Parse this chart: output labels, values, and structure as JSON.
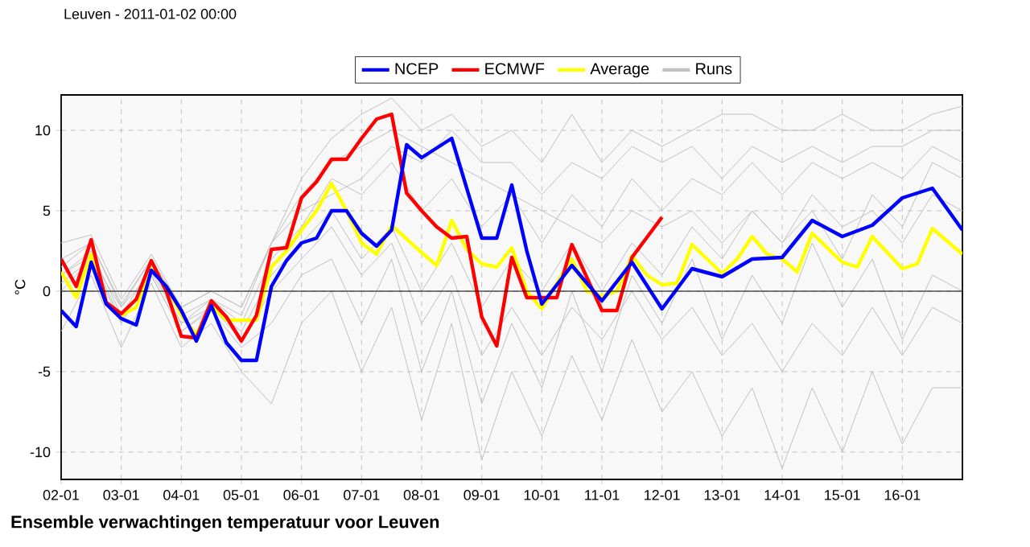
{
  "chart_data": {
    "type": "line",
    "title": "Leuven - 2011-01-02 00:00",
    "ylabel": "°C",
    "annotations": [
      "Ensemble verwachtingen temperatuur voor Leuven"
    ],
    "xlim": [
      "2011-01-02",
      "2011-01-17"
    ],
    "ylim": [
      -11.7,
      12.2
    ],
    "xticks": [
      {
        "value": "2011-01-02",
        "label": "02-01"
      },
      {
        "value": "2011-01-03",
        "label": "03-01"
      },
      {
        "value": "2011-01-04",
        "label": "04-01"
      },
      {
        "value": "2011-01-05",
        "label": "05-01"
      },
      {
        "value": "2011-01-06",
        "label": "06-01"
      },
      {
        "value": "2011-01-07",
        "label": "07-01"
      },
      {
        "value": "2011-01-08",
        "label": "08-01"
      },
      {
        "value": "2011-01-09",
        "label": "09-01"
      },
      {
        "value": "2011-01-10",
        "label": "10-01"
      },
      {
        "value": "2011-01-11",
        "label": "11-01"
      },
      {
        "value": "2011-01-12",
        "label": "12-01"
      },
      {
        "value": "2011-01-13",
        "label": "13-01"
      },
      {
        "value": "2011-01-14",
        "label": "14-01"
      },
      {
        "value": "2011-01-15",
        "label": "15-01"
      },
      {
        "value": "2011-01-16",
        "label": "16-01"
      }
    ],
    "yticks": [
      -10,
      -5,
      0,
      5,
      10
    ],
    "grid": true,
    "legend": "top",
    "marker": "none",
    "line_style": "solid",
    "ref_lines": [
      {
        "axis": "y",
        "value": 0,
        "color": "#000000"
      }
    ],
    "x": [
      "2011-01-02T00:00",
      "2011-01-02T12:00",
      "2011-01-03T00:00",
      "2011-01-03T12:00",
      "2011-01-04T00:00",
      "2011-01-04T12:00",
      "2011-01-05T00:00",
      "2011-01-05T12:00",
      "2011-01-06T00:00",
      "2011-01-06T12:00",
      "2011-01-07T00:00",
      "2011-01-07T12:00",
      "2011-01-08T00:00",
      "2011-01-08T12:00",
      "2011-01-09T00:00",
      "2011-01-09T12:00",
      "2011-01-10T00:00",
      "2011-01-10T12:00",
      "2011-01-11T00:00",
      "2011-01-11T12:00",
      "2011-01-12T00:00",
      "2011-01-12T12:00",
      "2011-01-13T00:00",
      "2011-01-13T12:00",
      "2011-01-14T00:00",
      "2011-01-14T12:00",
      "2011-01-15T00:00",
      "2011-01-15T12:00",
      "2011-01-16T00:00",
      "2011-01-16T12:00",
      "2011-01-17T00:00"
    ],
    "series": [
      {
        "name": "NCEP",
        "color": "#0000ff",
        "x": [
          "2011-01-02T00:00",
          "2011-01-02T06:00",
          "2011-01-02T12:00",
          "2011-01-02T18:00",
          "2011-01-03T00:00",
          "2011-01-03T06:00",
          "2011-01-03T12:00",
          "2011-01-03T18:00",
          "2011-01-04T00:00",
          "2011-01-04T06:00",
          "2011-01-04T12:00",
          "2011-01-04T18:00",
          "2011-01-05T00:00",
          "2011-01-05T06:00",
          "2011-01-05T12:00",
          "2011-01-05T18:00",
          "2011-01-06T00:00",
          "2011-01-06T06:00",
          "2011-01-06T12:00",
          "2011-01-06T18:00",
          "2011-01-07T00:00",
          "2011-01-07T06:00",
          "2011-01-07T12:00",
          "2011-01-07T18:00",
          "2011-01-08T00:00",
          "2011-01-08T12:00",
          "2011-01-09T00:00",
          "2011-01-09T06:00",
          "2011-01-09T12:00",
          "2011-01-09T18:00",
          "2011-01-10T00:00",
          "2011-01-10T12:00",
          "2011-01-11T00:00",
          "2011-01-11T12:00",
          "2011-01-12T00:00",
          "2011-01-12T12:00",
          "2011-01-13T00:00",
          "2011-01-13T12:00",
          "2011-01-14T00:00",
          "2011-01-14T12:00",
          "2011-01-15T00:00",
          "2011-01-15T12:00",
          "2011-01-16T00:00",
          "2011-01-16T12:00",
          "2011-01-17T00:00"
        ],
        "values": [
          -1.2,
          -2.2,
          1.8,
          -0.8,
          -1.7,
          -2.1,
          1.3,
          0.3,
          -1.2,
          -3.1,
          -0.9,
          -3.2,
          -4.3,
          -4.3,
          0.3,
          1.9,
          3.0,
          3.3,
          5.0,
          5.0,
          3.6,
          2.8,
          3.8,
          9.1,
          8.3,
          9.5,
          3.3,
          3.3,
          6.6,
          2.5,
          -0.8,
          1.6,
          -0.6,
          1.8,
          -1.1,
          1.4,
          0.9,
          2.0,
          2.1,
          4.4,
          3.4,
          4.1,
          5.8,
          6.4,
          3.8
        ]
      },
      {
        "name": "ECMWF",
        "color": "#ff0000",
        "x": [
          "2011-01-02T00:00",
          "2011-01-02T06:00",
          "2011-01-02T12:00",
          "2011-01-02T18:00",
          "2011-01-03T00:00",
          "2011-01-03T06:00",
          "2011-01-03T12:00",
          "2011-01-03T18:00",
          "2011-01-04T00:00",
          "2011-01-04T06:00",
          "2011-01-04T12:00",
          "2011-01-04T18:00",
          "2011-01-05T00:00",
          "2011-01-05T06:00",
          "2011-01-05T12:00",
          "2011-01-05T18:00",
          "2011-01-06T00:00",
          "2011-01-06T06:00",
          "2011-01-06T12:00",
          "2011-01-06T18:00",
          "2011-01-07T00:00",
          "2011-01-07T06:00",
          "2011-01-07T12:00",
          "2011-01-07T18:00",
          "2011-01-08T00:00",
          "2011-01-08T06:00",
          "2011-01-08T12:00",
          "2011-01-08T18:00",
          "2011-01-09T00:00",
          "2011-01-09T06:00",
          "2011-01-09T12:00",
          "2011-01-09T18:00",
          "2011-01-10T06:00",
          "2011-01-10T12:00",
          "2011-01-11T00:00",
          "2011-01-11T06:00",
          "2011-01-11T12:00",
          "2011-01-12T00:00"
        ],
        "values": [
          2.0,
          0.3,
          3.2,
          -0.7,
          -1.4,
          -0.5,
          1.9,
          0.0,
          -2.8,
          -2.9,
          -0.6,
          -1.6,
          -3.1,
          -1.5,
          2.6,
          2.7,
          5.8,
          6.8,
          8.2,
          8.2,
          9.5,
          10.7,
          11.0,
          6.1,
          5.0,
          4.0,
          3.3,
          3.4,
          -1.6,
          -3.4,
          2.1,
          -0.4,
          -0.4,
          2.9,
          -1.2,
          -1.2,
          2.1,
          4.6
        ]
      },
      {
        "name": "Average",
        "color": "#ffff00",
        "x": [
          "2011-01-02T00:00",
          "2011-01-02T06:00",
          "2011-01-02T12:00",
          "2011-01-02T18:00",
          "2011-01-03T00:00",
          "2011-01-03T06:00",
          "2011-01-03T12:00",
          "2011-01-03T18:00",
          "2011-01-04T00:00",
          "2011-01-04T06:00",
          "2011-01-04T12:00",
          "2011-01-04T18:00",
          "2011-01-05T00:00",
          "2011-01-05T06:00",
          "2011-01-05T12:00",
          "2011-01-05T18:00",
          "2011-01-06T00:00",
          "2011-01-06T06:00",
          "2011-01-06T12:00",
          "2011-01-06T18:00",
          "2011-01-07T00:00",
          "2011-01-07T06:00",
          "2011-01-07T12:00",
          "2011-01-08T00:00",
          "2011-01-08T06:00",
          "2011-01-08T12:00",
          "2011-01-08T18:00",
          "2011-01-09T00:00",
          "2011-01-09T06:00",
          "2011-01-09T12:00",
          "2011-01-09T18:00",
          "2011-01-10T00:00",
          "2011-01-10T06:00",
          "2011-01-10T12:00",
          "2011-01-10T18:00",
          "2011-01-11T00:00",
          "2011-01-11T06:00",
          "2011-01-11T12:00",
          "2011-01-11T18:00",
          "2011-01-12T00:00",
          "2011-01-12T06:00",
          "2011-01-12T12:00",
          "2011-01-13T00:00",
          "2011-01-13T06:00",
          "2011-01-13T12:00",
          "2011-01-13T18:00",
          "2011-01-14T00:00",
          "2011-01-14T06:00",
          "2011-01-14T12:00",
          "2011-01-15T00:00",
          "2011-01-15T06:00",
          "2011-01-15T12:00",
          "2011-01-16T00:00",
          "2011-01-16T06:00",
          "2011-01-16T12:00",
          "2011-01-17T00:00"
        ],
        "values": [
          1.2,
          -0.4,
          2.3,
          -0.8,
          -1.5,
          -1.0,
          1.4,
          0.3,
          -1.5,
          -2.7,
          -0.9,
          -1.8,
          -1.8,
          -1.8,
          1.5,
          2.5,
          3.8,
          5.0,
          6.7,
          5.0,
          3.0,
          2.3,
          4.1,
          2.4,
          1.6,
          4.4,
          2.6,
          1.7,
          1.5,
          2.7,
          0.0,
          -1.1,
          0.5,
          2.0,
          0.0,
          -0.3,
          0.0,
          2.2,
          1.0,
          0.4,
          0.5,
          2.9,
          1.1,
          2.0,
          3.4,
          2.3,
          2.0,
          1.2,
          3.6,
          1.8,
          1.5,
          3.4,
          1.4,
          1.7,
          3.9,
          2.3
        ]
      },
      {
        "name": "Runs",
        "color": "#c0c0c0",
        "values": [
          3,
          3.5,
          -0.5,
          2.3,
          -1,
          0,
          -1,
          3,
          7,
          9.5,
          11,
          12,
          10,
          11,
          9,
          10,
          8,
          11,
          8,
          10,
          9,
          10,
          11,
          11,
          10,
          10,
          11,
          10,
          10,
          11,
          11.5
        ]
      },
      {
        "color": "#c0c0c0",
        "values": [
          -2.5,
          1,
          -3.5,
          0.5,
          -3.5,
          -2,
          -5,
          -7,
          -2,
          0,
          -5,
          -1,
          -8,
          -2,
          -10.5,
          -5,
          -9,
          -4,
          -8,
          -3,
          -7.5,
          -5,
          -9,
          -6,
          -11,
          -6,
          -10,
          -5,
          -9.5,
          -6,
          -6
        ]
      },
      {
        "color": "#c0c0c0",
        "values": [
          1,
          2.5,
          -1.5,
          1.5,
          -2,
          -0.5,
          -2,
          2,
          4,
          7,
          6,
          8,
          5,
          7,
          4,
          6,
          3,
          6,
          4,
          7,
          5,
          7,
          6,
          8,
          6,
          8,
          7,
          8,
          7,
          9,
          8
        ]
      },
      {
        "color": "#c0c0c0",
        "values": [
          0,
          2,
          -2,
          1,
          -2.5,
          -1,
          -3,
          0,
          2,
          4,
          1,
          3,
          -2,
          1,
          -4,
          -1,
          -4,
          -1,
          -3,
          0,
          -3,
          -1,
          -4,
          -2,
          -5,
          -2,
          -4,
          -1,
          -4,
          -1,
          -2
        ]
      },
      {
        "color": "#c0c0c0",
        "values": [
          1.5,
          3,
          -1,
          2,
          -1.5,
          -0.5,
          -1.5,
          3,
          6,
          8,
          9,
          10,
          9,
          8,
          7,
          6,
          5,
          4,
          3,
          5,
          4,
          5,
          3,
          5,
          3,
          6,
          4,
          5,
          3,
          6,
          5
        ]
      },
      {
        "color": "#c0c0c0",
        "values": [
          0.5,
          2,
          -1,
          1.2,
          -2,
          -1,
          -2.5,
          1,
          3,
          5,
          2,
          4,
          0,
          3,
          -1,
          2,
          0,
          3,
          0,
          3,
          1,
          4,
          2,
          5,
          3,
          5,
          2,
          6,
          4,
          8,
          7
        ]
      },
      {
        "color": "#c0c0c0",
        "values": [
          1,
          2.2,
          -1.8,
          1,
          -2.5,
          -1.2,
          -3.5,
          -2,
          1,
          2,
          -2,
          2,
          -5,
          0,
          -7,
          -2,
          -6,
          0,
          -5,
          1,
          -2,
          2,
          -3,
          1,
          -2,
          3,
          -1,
          2,
          -3,
          1,
          0
        ]
      },
      {
        "color": "#c0c0c0",
        "values": [
          2,
          3,
          -0.8,
          2,
          -1,
          0,
          -1,
          3,
          5,
          6,
          7,
          9,
          8,
          10,
          8,
          8,
          6,
          8,
          7,
          9,
          8,
          9,
          7,
          9,
          8,
          9,
          8,
          9,
          9,
          10,
          10
        ]
      }
    ]
  }
}
